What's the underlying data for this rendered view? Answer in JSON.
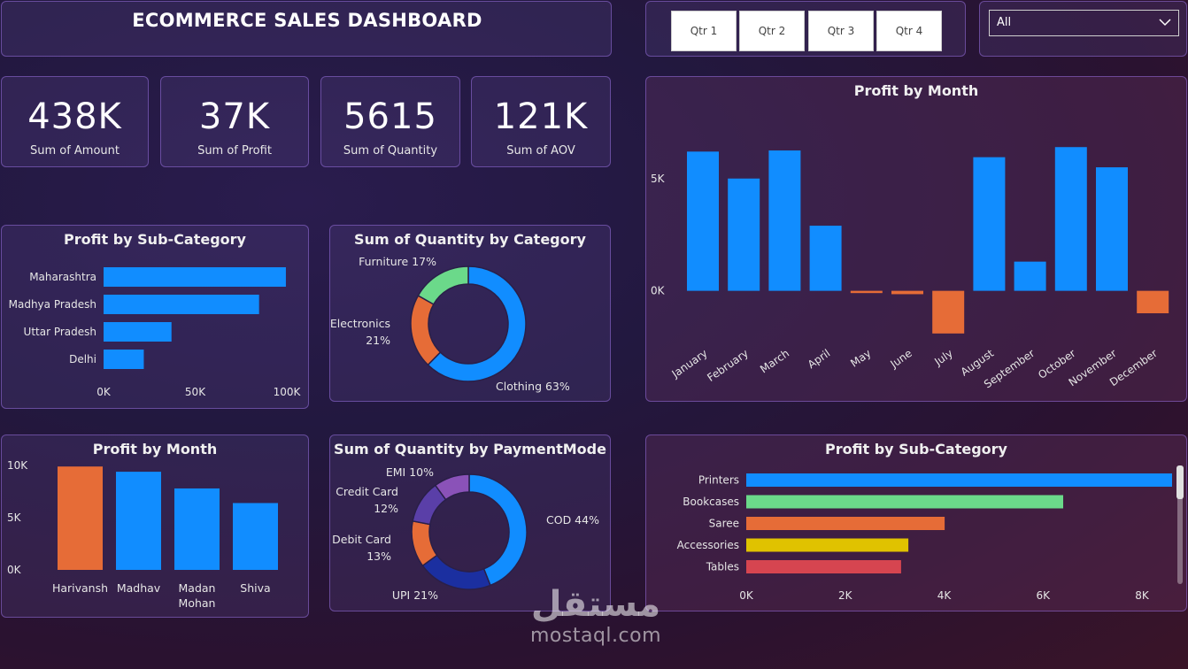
{
  "header": {
    "title": "ECOMMERCE SALES DASHBOARD"
  },
  "quarters": [
    "Qtr 1",
    "Qtr 2",
    "Qtr 3",
    "Qtr 4"
  ],
  "filter": {
    "selected": "All"
  },
  "kpis": [
    {
      "value": "438K",
      "label": "Sum of Amount"
    },
    {
      "value": "37K",
      "label": "Sum of Profit"
    },
    {
      "value": "5615",
      "label": "Sum of Quantity"
    },
    {
      "value": "121K",
      "label": "Sum of AOV"
    }
  ],
  "colors": {
    "blue": "#118DFF",
    "orange": "#E66C37",
    "green": "#6BD98A",
    "yellow": "#E0C200",
    "red": "#D64550",
    "navy": "#1B2FA0",
    "purple": "#8A52B8",
    "indigo": "#5A3FA8"
  },
  "watermark": {
    "arabic": "مستقل",
    "latin": "mostaql.com"
  },
  "chart_data": [
    {
      "id": "profit-by-state",
      "type": "bar",
      "orientation": "horizontal",
      "title": "Profit by Sub-Category",
      "categories": [
        "Maharashtra",
        "Madhya Pradesh",
        "Uttar Pradesh",
        "Delhi"
      ],
      "values": [
        102000,
        87000,
        38000,
        22500
      ],
      "ticks": [
        "0K",
        "50K",
        "100K"
      ],
      "xlim": [
        0,
        105000
      ]
    },
    {
      "id": "quantity-by-category",
      "type": "pie",
      "donut": true,
      "title": "Sum of Quantity by Category",
      "slices": [
        {
          "name": "Clothing",
          "value": 63,
          "label": "Clothing 63%",
          "color": "#118DFF"
        },
        {
          "name": "Electronics",
          "value": 21,
          "label": "Electronics 21%",
          "color": "#E66C37"
        },
        {
          "name": "Furniture",
          "value": 17,
          "label": "Furniture 17%",
          "color": "#6BD98A"
        }
      ]
    },
    {
      "id": "profit-by-month",
      "type": "bar",
      "title": "Profit by Month",
      "categories": [
        "January",
        "February",
        "March",
        "April",
        "May",
        "June",
        "July",
        "August",
        "September",
        "October",
        "November",
        "December"
      ],
      "values": [
        6200,
        5000,
        6250,
        2900,
        -100,
        -150,
        -1900,
        5950,
        1300,
        6400,
        5500,
        -1000
      ],
      "ticks": [
        "0K",
        "5K"
      ],
      "ylim": [
        -2300,
        7000
      ],
      "positive_color": "#118DFF",
      "negative_color": "#E66C37"
    },
    {
      "id": "profit-by-customer",
      "type": "bar",
      "title": "Profit by Month",
      "categories": [
        "Harivansh",
        "Madhav",
        "Madan Mohan",
        "Shiva"
      ],
      "values": [
        9900,
        9400,
        7800,
        6400
      ],
      "colors": [
        "#E66C37",
        "#118DFF",
        "#118DFF",
        "#118DFF"
      ],
      "ticks": [
        "0K",
        "5K",
        "10K"
      ],
      "ylim": [
        0,
        10000
      ]
    },
    {
      "id": "quantity-by-paymentmode",
      "type": "pie",
      "donut": true,
      "title": "Sum of Quantity by PaymentMode",
      "slices": [
        {
          "name": "COD",
          "value": 44,
          "label": "COD 44%",
          "color": "#118DFF"
        },
        {
          "name": "UPI",
          "value": 21,
          "label": "UPI 21%",
          "color": "#1B2FA0"
        },
        {
          "name": "Debit Card",
          "value": 13,
          "label": "Debit Card 13%",
          "color": "#E66C37"
        },
        {
          "name": "Credit Card",
          "value": 12,
          "label": "Credit Card 12%",
          "color": "#5A3FA8"
        },
        {
          "name": "EMI",
          "value": 10,
          "label": "EMI 10%",
          "color": "#8A52B8"
        }
      ]
    },
    {
      "id": "profit-by-subcategory",
      "type": "bar",
      "orientation": "horizontal",
      "title": "Profit by Sub-Category",
      "categories": [
        "Printers",
        "Bookcases",
        "Saree",
        "Accessories",
        "Tables"
      ],
      "values": [
        8800,
        6550,
        4100,
        3350,
        3200
      ],
      "colors": [
        "#118DFF",
        "#6BD98A",
        "#E66C37",
        "#E0C200",
        "#D64550"
      ],
      "ticks": [
        "0K",
        "2K",
        "4K",
        "6K",
        "8K"
      ],
      "xlim": [
        0,
        8800
      ]
    }
  ]
}
